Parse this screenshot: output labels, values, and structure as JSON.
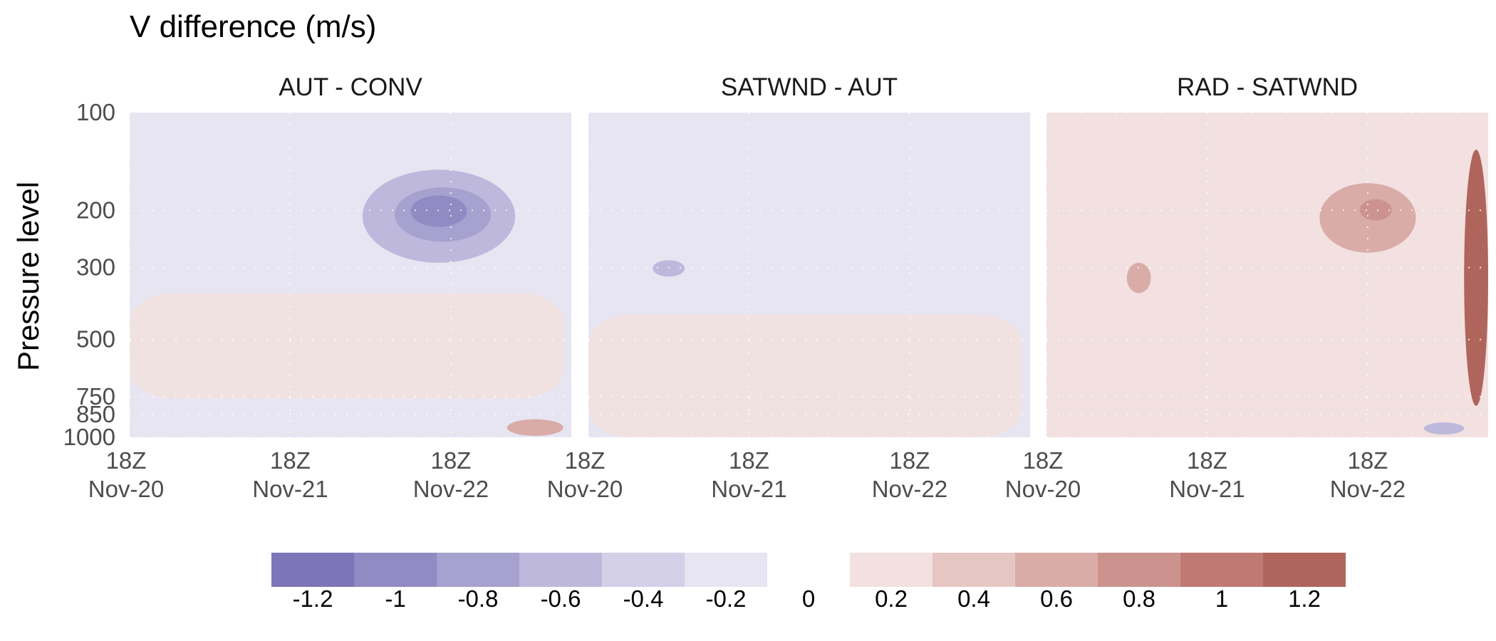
{
  "chart_data": {
    "type": "heatmap",
    "title": "V difference (m/s)",
    "ylabel": "Pressure level",
    "xlabel": "",
    "y_scale": "log",
    "y_ticks": [
      100,
      200,
      300,
      500,
      750,
      850,
      1000
    ],
    "y_tick_labels": [
      "100",
      "200",
      "300",
      "500",
      "750",
      "850",
      "1000"
    ],
    "x_ticks": [
      "18Z Nov-20",
      "18Z Nov-21",
      "18Z Nov-22"
    ],
    "x_tick_labels": [
      {
        "line1": "18Z",
        "line2": "Nov-20"
      },
      {
        "line1": "18Z",
        "line2": "Nov-21"
      },
      {
        "line1": "18Z",
        "line2": "Nov-22"
      }
    ],
    "panels": [
      {
        "name": "AUT - CONV",
        "background": -0.2,
        "features": [
          {
            "region": "upper-right",
            "t": [
              1.45,
              2.4
            ],
            "p": [
              150,
              290
            ],
            "level": -0.6
          },
          {
            "region": "upper-right",
            "t": [
              1.65,
              2.25
            ],
            "p": [
              170,
              250
            ],
            "level": -0.8
          },
          {
            "region": "upper-right",
            "t": [
              1.75,
              2.1
            ],
            "p": [
              180,
              225
            ],
            "level": -1.0
          },
          {
            "region": "broad",
            "t": [
              0.0,
              2.7
            ],
            "p": [
              360,
              760
            ],
            "level": 0.2
          },
          {
            "region": "surface",
            "t": [
              2.35,
              2.7
            ],
            "p": [
              880,
              990
            ],
            "level": 0.6
          }
        ]
      },
      {
        "name": "SATWND - AUT",
        "background": -0.2,
        "features": [
          {
            "region": "left",
            "t": [
              0.4,
              0.6
            ],
            "p": [
              285,
              320
            ],
            "level": -0.6
          },
          {
            "region": "broad",
            "t": [
              0.0,
              2.7
            ],
            "p": [
              420,
              1000
            ],
            "level": 0.2
          }
        ]
      },
      {
        "name": "RAD - SATWND",
        "background": 0.2,
        "features": [
          {
            "region": "upper-right",
            "t": [
              1.7,
              2.3
            ],
            "p": [
              165,
              270
            ],
            "level": 0.6
          },
          {
            "region": "upper-right",
            "t": [
              1.95,
              2.15
            ],
            "p": [
              185,
              215
            ],
            "level": 0.8
          },
          {
            "region": "right-edge",
            "t": [
              2.6,
              2.75
            ],
            "p": [
              130,
              800
            ],
            "level": 1.2
          },
          {
            "region": "left",
            "t": [
              0.5,
              0.65
            ],
            "p": [
              290,
              360
            ],
            "level": 0.6
          },
          {
            "region": "surface",
            "t": [
              2.35,
              2.6
            ],
            "p": [
              900,
              980
            ],
            "level": -0.6
          }
        ]
      }
    ],
    "legend": {
      "placement": "bottom",
      "negative": [
        {
          "label": "-1.2",
          "color": "#7d75b7"
        },
        {
          "label": "-1",
          "color": "#918ac3"
        },
        {
          "label": "-0.8",
          "color": "#a7a1cf"
        },
        {
          "label": "-0.6",
          "color": "#bdb8dc"
        },
        {
          "label": "-0.4",
          "color": "#d3d0e8"
        },
        {
          "label": "-0.2",
          "color": "#e7e5f2"
        }
      ],
      "zero_label": "0",
      "positive": [
        {
          "label": "0.2",
          "color": "#f2e1e0"
        },
        {
          "label": "0.4",
          "color": "#e6c6c3"
        },
        {
          "label": "0.6",
          "color": "#d9aca8"
        },
        {
          "label": "0.8",
          "color": "#cc938e"
        },
        {
          "label": "1",
          "color": "#bf7a74"
        },
        {
          "label": "1.2",
          "color": "#b0655c"
        }
      ]
    },
    "grid": true
  }
}
